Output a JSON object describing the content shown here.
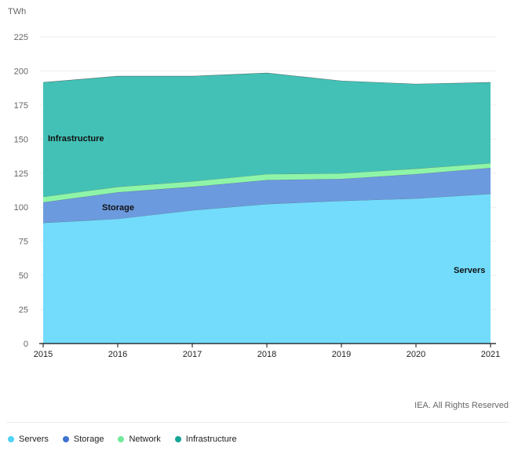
{
  "chart_data": {
    "type": "area",
    "stacked": true,
    "ylabel": "TWh",
    "ylim": [
      0,
      225
    ],
    "yticks": [
      0,
      25,
      50,
      75,
      100,
      125,
      150,
      175,
      200,
      225
    ],
    "categories": [
      "2015",
      "2016",
      "2017",
      "2018",
      "2019",
      "2020",
      "2021"
    ],
    "grid": true,
    "legend": "bottom-left",
    "series": [
      {
        "name": "Servers",
        "color": "#73dcfd",
        "legend_color": "#4fd3f7",
        "values": [
          88.6,
          91.5,
          97.8,
          102.4,
          104.7,
          106.4,
          109.9
        ]
      },
      {
        "name": "Storage",
        "color": "#6c9ade",
        "legend_color": "#3f72d1",
        "values": [
          15.0,
          19.5,
          17.2,
          17.6,
          16.1,
          17.9,
          19.0
        ]
      },
      {
        "name": "Network",
        "color": "#8ef5a8",
        "legend_color": "#72ea98",
        "values": [
          4.0,
          4.0,
          4.0,
          4.3,
          4.1,
          4.0,
          3.4
        ]
      },
      {
        "name": "Infrastructure",
        "color": "#43c1b6",
        "legend_color": "#13a596",
        "values": [
          84.0,
          81.2,
          77.2,
          74.2,
          67.8,
          62.1,
          59.3
        ]
      }
    ]
  },
  "credit": "IEA. All Rights Reserved"
}
